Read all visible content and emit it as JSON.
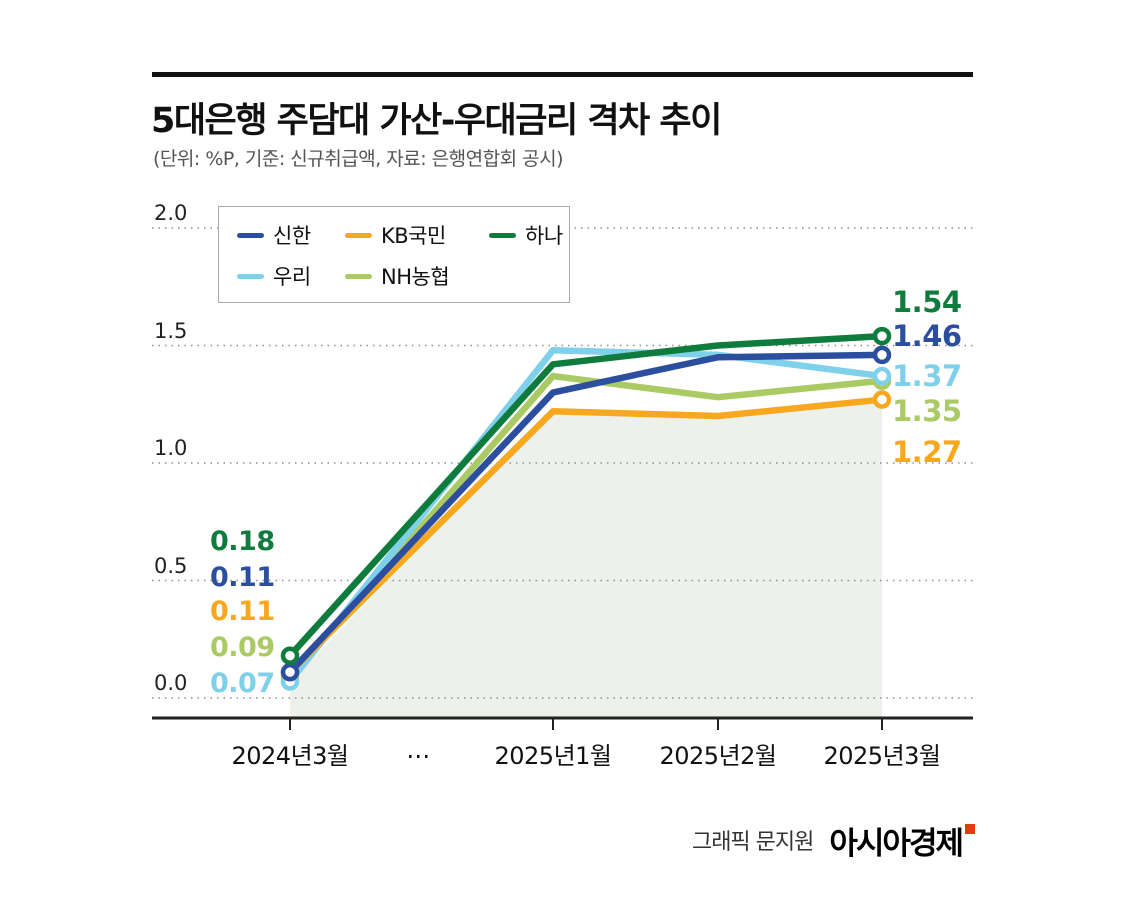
{
  "header": {
    "title": "5대은행 주담대 가산-우대금리 격차 추이",
    "subtitle": "(단위: %P, 기준: 신규취급액, 자료: 은행연합회 공시)"
  },
  "chart_data": {
    "type": "line",
    "title": "5대은행 주담대 가산-우대금리 격차 추이",
    "unit_note": "(단위: %P, 기준: 신규취급액, 자료: 은행연합회 공시)",
    "categories": [
      "2024년3월",
      "2025년1월",
      "2025년2월",
      "2025년3월"
    ],
    "x_axis_break_label": "…",
    "ylim": [
      0,
      2.0
    ],
    "yticks": [
      "2.0",
      "1.5",
      "1.0",
      "0.5",
      "0.0"
    ],
    "grid": "dotted-horizontal",
    "legend_position": "top-left-inside",
    "series": [
      {
        "name": "신한",
        "color": "#2b4f9e",
        "values": [
          0.11,
          1.3,
          1.45,
          1.46
        ],
        "start_label": "0.11",
        "end_label": "1.46"
      },
      {
        "name": "KB국민",
        "color": "#f8a81f",
        "values": [
          0.11,
          1.22,
          1.2,
          1.27
        ],
        "start_label": "0.11",
        "end_label": "1.27"
      },
      {
        "name": "하나",
        "color": "#0f7c3d",
        "values": [
          0.18,
          1.42,
          1.5,
          1.54
        ],
        "start_label": "0.18",
        "end_label": "1.54"
      },
      {
        "name": "우리",
        "color": "#7fd0ea",
        "values": [
          0.07,
          1.48,
          1.46,
          1.37
        ],
        "start_label": "0.07",
        "end_label": "1.37"
      },
      {
        "name": "NH농협",
        "color": "#aaca64",
        "values": [
          0.09,
          1.37,
          1.28,
          1.35
        ],
        "start_label": "0.09",
        "end_label": "1.35"
      }
    ]
  },
  "footer": {
    "credit": "그래픽 문지원",
    "brand": "아시아경제"
  }
}
